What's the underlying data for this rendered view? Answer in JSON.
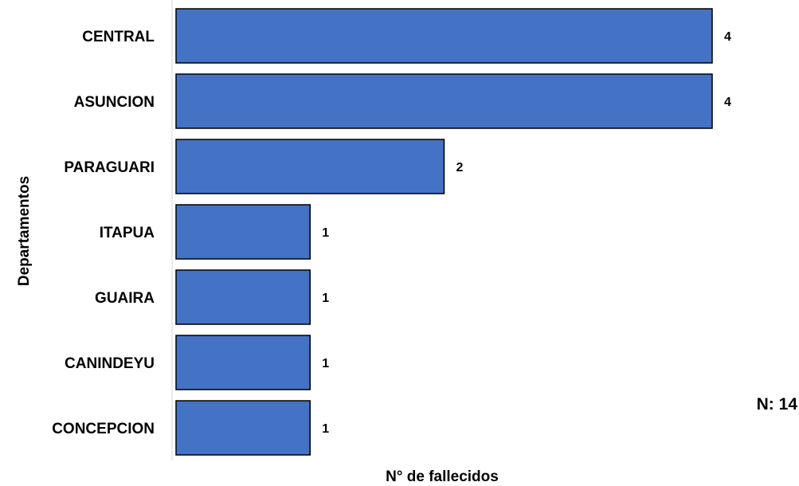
{
  "chart_data": {
    "type": "bar",
    "orientation": "horizontal",
    "categories": [
      "CENTRAL",
      "ASUNCION",
      "PARAGUARI",
      "ITAPUA",
      "GUAIRA",
      "CANINDEYU",
      "CONCEPCION"
    ],
    "values": [
      4,
      4,
      2,
      1,
      1,
      1,
      1
    ],
    "title": "",
    "xlabel": "N° de fallecidos",
    "ylabel": "Departamentos",
    "xlim": [
      0,
      4
    ],
    "grid": false,
    "legend": "none",
    "bar_color": "#4472C4",
    "bar_edge_color": "#000000",
    "annotation": "N: 14"
  }
}
